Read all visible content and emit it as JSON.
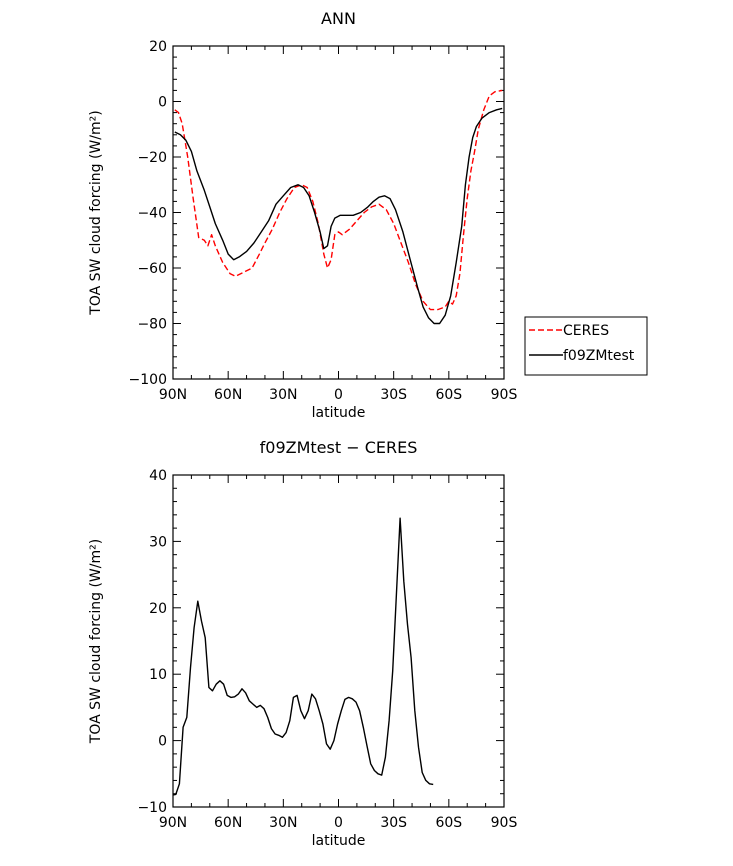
{
  "chart_data": [
    {
      "type": "line",
      "title": "ANN",
      "xlabel": "latitude",
      "ylabel": "TOA SW cloud forcing (W/m²)",
      "xlim": [
        90,
        -90
      ],
      "ylim": [
        -100,
        20
      ],
      "x_ticks": [
        {
          "value": 90,
          "label": "90N"
        },
        {
          "value": 60,
          "label": "60N"
        },
        {
          "value": 30,
          "label": "30N"
        },
        {
          "value": 0,
          "label": "0"
        },
        {
          "value": -30,
          "label": "30S"
        },
        {
          "value": -60,
          "label": "60S"
        },
        {
          "value": -90,
          "label": "90S"
        }
      ],
      "y_ticks": [
        20,
        0,
        -20,
        -40,
        -60,
        -80,
        -100
      ],
      "legend": {
        "placement": "right",
        "entries": [
          "CERES",
          "f09ZMtest"
        ]
      },
      "series": [
        {
          "name": "CERES",
          "color": "#ff0000",
          "dash": "dashed",
          "points": [
            [
              89,
              -3
            ],
            [
              87,
              -4
            ],
            [
              85,
              -8
            ],
            [
              82,
              -20
            ],
            [
              79,
              -35
            ],
            [
              76,
              -49
            ],
            [
              73,
              -50
            ],
            [
              71,
              -52
            ],
            [
              69,
              -48
            ],
            [
              67,
              -52
            ],
            [
              63,
              -58
            ],
            [
              59,
              -62
            ],
            [
              56,
              -63
            ],
            [
              50,
              -61
            ],
            [
              47,
              -60
            ],
            [
              43,
              -55
            ],
            [
              40,
              -51
            ],
            [
              36,
              -46
            ],
            [
              32,
              -40
            ],
            [
              28,
              -35
            ],
            [
              24,
              -31
            ],
            [
              20,
              -30
            ],
            [
              17,
              -31
            ],
            [
              14,
              -36
            ],
            [
              11,
              -44
            ],
            [
              8,
              -55
            ],
            [
              6,
              -60
            ],
            [
              4,
              -57
            ],
            [
              2,
              -48
            ],
            [
              0,
              -47
            ],
            [
              -2,
              -48
            ],
            [
              -4,
              -47
            ],
            [
              -6,
              -46
            ],
            [
              -10,
              -43
            ],
            [
              -14,
              -40
            ],
            [
              -18,
              -38
            ],
            [
              -22,
              -37
            ],
            [
              -26,
              -39
            ],
            [
              -30,
              -44
            ],
            [
              -34,
              -51
            ],
            [
              -38,
              -58
            ],
            [
              -42,
              -66
            ],
            [
              -46,
              -72
            ],
            [
              -50,
              -75
            ],
            [
              -54,
              -75
            ],
            [
              -58,
              -74
            ],
            [
              -60,
              -72
            ],
            [
              -62,
              -73
            ],
            [
              -64,
              -70
            ],
            [
              -66,
              -62
            ],
            [
              -68,
              -48
            ],
            [
              -70,
              -35
            ],
            [
              -72,
              -25
            ],
            [
              -74,
              -18
            ],
            [
              -76,
              -10
            ],
            [
              -79,
              -3
            ],
            [
              -82,
              2
            ],
            [
              -85,
              3.5
            ],
            [
              -89,
              4
            ]
          ]
        },
        {
          "name": "f09ZMtest",
          "color": "#000000",
          "dash": "solid",
          "points": [
            [
              89,
              -11
            ],
            [
              86,
              -12
            ],
            [
              83,
              -14
            ],
            [
              80,
              -18
            ],
            [
              77,
              -25
            ],
            [
              73,
              -32
            ],
            [
              70,
              -38
            ],
            [
              67,
              -44
            ],
            [
              63,
              -50
            ],
            [
              60,
              -55
            ],
            [
              57,
              -57
            ],
            [
              54,
              -56
            ],
            [
              50,
              -54
            ],
            [
              46,
              -51
            ],
            [
              42,
              -47
            ],
            [
              38,
              -43
            ],
            [
              34,
              -37
            ],
            [
              30,
              -34
            ],
            [
              26,
              -31
            ],
            [
              22,
              -30
            ],
            [
              19,
              -31
            ],
            [
              16,
              -34
            ],
            [
              13,
              -40
            ],
            [
              10,
              -47
            ],
            [
              8,
              -53
            ],
            [
              6,
              -52
            ],
            [
              4,
              -45
            ],
            [
              2,
              -42
            ],
            [
              -1,
              -41
            ],
            [
              -4,
              -41
            ],
            [
              -8,
              -41
            ],
            [
              -12,
              -40
            ],
            [
              -16,
              -38
            ],
            [
              -19,
              -36
            ],
            [
              -22,
              -34.5
            ],
            [
              -25,
              -34
            ],
            [
              -28,
              -35
            ],
            [
              -31,
              -39
            ],
            [
              -35,
              -47
            ],
            [
              -39,
              -57
            ],
            [
              -43,
              -67
            ],
            [
              -46,
              -74
            ],
            [
              -49,
              -78
            ],
            [
              -52,
              -80
            ],
            [
              -55,
              -80
            ],
            [
              -58,
              -77
            ],
            [
              -61,
              -70
            ],
            [
              -64,
              -58
            ],
            [
              -67,
              -45
            ],
            [
              -69,
              -30
            ],
            [
              -71,
              -20
            ],
            [
              -73,
              -13
            ],
            [
              -75,
              -9
            ],
            [
              -78,
              -6
            ],
            [
              -82,
              -4
            ],
            [
              -86,
              -3
            ],
            [
              -89,
              -2.5
            ]
          ]
        }
      ]
    },
    {
      "type": "line",
      "title": "f09ZMtest − CERES",
      "xlabel": "latitude",
      "ylabel": "TOA SW cloud forcing (W/m²)",
      "xlim": [
        90,
        -90
      ],
      "ylim": [
        -10,
        40
      ],
      "x_ticks": [
        {
          "value": 90,
          "label": "90N"
        },
        {
          "value": 60,
          "label": "60N"
        },
        {
          "value": 30,
          "label": "30N"
        },
        {
          "value": 0,
          "label": "0"
        },
        {
          "value": -30,
          "label": "30S"
        },
        {
          "value": -60,
          "label": "60S"
        },
        {
          "value": -90,
          "label": "90S"
        }
      ],
      "y_ticks": [
        40,
        30,
        20,
        10,
        0,
        -10
      ],
      "series": [
        {
          "color": "#000000",
          "dash": "solid",
          "points": [
            [
              90,
              -8.2
            ],
            [
              88.5,
              -8.1
            ],
            [
              86.5,
              -6.5
            ],
            [
              84.5,
              2
            ],
            [
              82.5,
              3.5
            ],
            [
              80.5,
              11
            ],
            [
              78.5,
              17
            ],
            [
              76.5,
              21
            ],
            [
              74.5,
              18
            ],
            [
              72.5,
              15.5
            ],
            [
              70.5,
              8
            ],
            [
              68.5,
              7.5
            ],
            [
              66.5,
              8.5
            ],
            [
              64.5,
              9
            ],
            [
              62.5,
              8.5
            ],
            [
              60.5,
              6.8
            ],
            [
              58.5,
              6.5
            ],
            [
              56.5,
              6.6
            ],
            [
              54.5,
              7
            ],
            [
              52.5,
              7.8
            ],
            [
              50.5,
              7.2
            ],
            [
              48.5,
              6
            ],
            [
              46.5,
              5.5
            ],
            [
              44.5,
              5
            ],
            [
              42.5,
              5.3
            ],
            [
              40.5,
              4.8
            ],
            [
              38.5,
              3.5
            ],
            [
              36.5,
              1.8
            ],
            [
              34.5,
              1
            ],
            [
              32.5,
              0.8
            ],
            [
              30.5,
              0.5
            ],
            [
              28.5,
              1.2
            ],
            [
              26.5,
              3
            ],
            [
              24.5,
              6.5
            ],
            [
              22.5,
              6.8
            ],
            [
              20.5,
              4.5
            ],
            [
              18.5,
              3.3
            ],
            [
              16.5,
              4.5
            ],
            [
              14.5,
              7
            ],
            [
              12.5,
              6.3
            ],
            [
              10.5,
              4.5
            ],
            [
              8.5,
              2.5
            ],
            [
              6.5,
              -0.5
            ],
            [
              4.5,
              -1.3
            ],
            [
              2.5,
              0
            ],
            [
              0.5,
              2.5
            ],
            [
              -1.5,
              4.5
            ],
            [
              -3.5,
              6.2
            ],
            [
              -5.5,
              6.5
            ],
            [
              -7.5,
              6.3
            ],
            [
              -9.5,
              5.8
            ],
            [
              -11.5,
              4.5
            ],
            [
              -13.5,
              2
            ],
            [
              -15.5,
              -0.8
            ],
            [
              -17.5,
              -3.5
            ],
            [
              -19.5,
              -4.5
            ],
            [
              -21.5,
              -5
            ],
            [
              -23.5,
              -5.2
            ],
            [
              -25.5,
              -2.5
            ],
            [
              -27.5,
              3
            ],
            [
              -29.5,
              10.5
            ],
            [
              -31.5,
              22
            ],
            [
              -33.5,
              33.5
            ],
            [
              -35.5,
              24
            ],
            [
              -37.5,
              17.5
            ],
            [
              -39.5,
              12.5
            ],
            [
              -41.5,
              4.5
            ],
            [
              -43.5,
              -1
            ],
            [
              -45.5,
              -4.8
            ],
            [
              -47.5,
              -6
            ],
            [
              -49.5,
              -6.5
            ],
            [
              -51.5,
              -6.6
            ]
          ]
        }
      ]
    }
  ]
}
